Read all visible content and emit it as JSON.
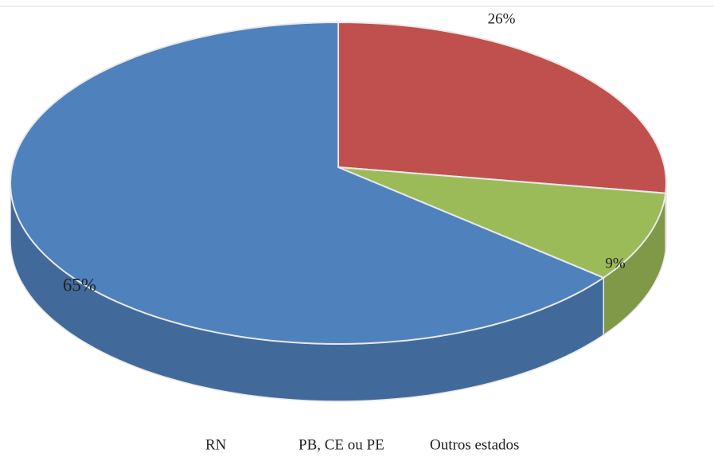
{
  "chart_data": {
    "type": "pie",
    "categories": [
      "RN",
      "PB, CE ou PE",
      "Outros estados"
    ],
    "values": [
      65,
      26,
      9
    ],
    "value_labels": [
      "65%",
      "26%",
      "9%"
    ],
    "colors": [
      "#4f81bd",
      "#c0504d",
      "#9bbb59"
    ]
  }
}
